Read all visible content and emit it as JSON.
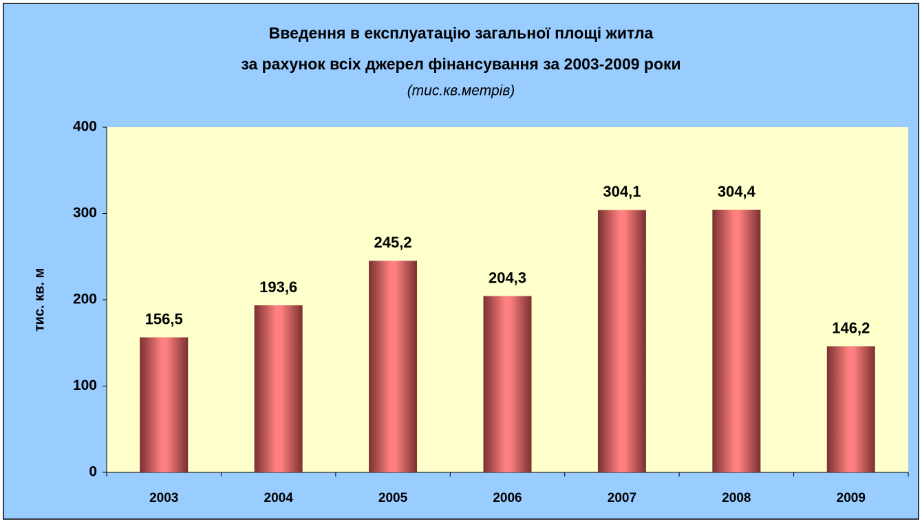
{
  "chart_data": {
    "type": "bar",
    "title": [
      "Введення в експлуатацію загальної площі житла",
      "за рахунок всіх джерел фінансування за 2003-2009 роки"
    ],
    "subtitle": "(тис.кв.метрів)",
    "y_label": "тис. кв. м",
    "categories": [
      "2003",
      "2004",
      "2005",
      "2006",
      "2007",
      "2008",
      "2009"
    ],
    "values": [
      156.5,
      193.6,
      245.2,
      204.3,
      304.1,
      304.4,
      146.2
    ],
    "value_labels": [
      "156,5",
      "193,6",
      "245,2",
      "204,3",
      "304,1",
      "304,4",
      "146,2"
    ],
    "color": "#ff8080",
    "ylim": [
      0,
      400
    ],
    "yticks": [
      0,
      100,
      200,
      300,
      400
    ],
    "grid": false
  }
}
